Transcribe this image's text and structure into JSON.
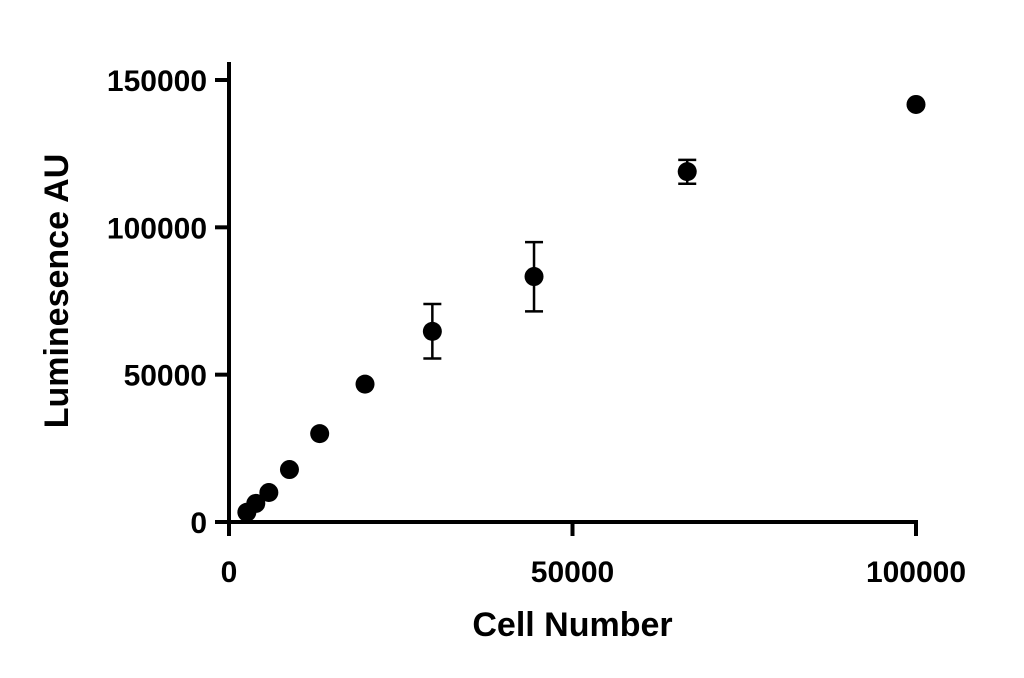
{
  "chart_data": {
    "type": "scatter",
    "xlabel": "Cell Number",
    "ylabel": "Luminesence AU",
    "xlim": [
      0,
      100000
    ],
    "ylim": [
      0,
      150000
    ],
    "x_ticks": [
      0,
      50000,
      100000
    ],
    "y_ticks": [
      0,
      50000,
      100000,
      150000
    ],
    "x_tick_labels": [
      "0",
      "50000",
      "100000"
    ],
    "y_tick_labels": [
      "0",
      "50000",
      "100000",
      "150000"
    ],
    "grid": false,
    "marker_color": "#000000",
    "points": [
      {
        "x": 2600,
        "y": 3300
      },
      {
        "x": 3900,
        "y": 6300
      },
      {
        "x": 5800,
        "y": 10000
      },
      {
        "x": 8800,
        "y": 17800
      },
      {
        "x": 13200,
        "y": 30000
      },
      {
        "x": 19800,
        "y": 46800
      },
      {
        "x": 29600,
        "y": 64700,
        "err_low": 55500,
        "err_high": 74000
      },
      {
        "x": 44400,
        "y": 83300,
        "err_low": 71500,
        "err_high": 95000
      },
      {
        "x": 66700,
        "y": 118900,
        "err_low": 114800,
        "err_high": 122900
      },
      {
        "x": 100000,
        "y": 141700
      }
    ]
  }
}
